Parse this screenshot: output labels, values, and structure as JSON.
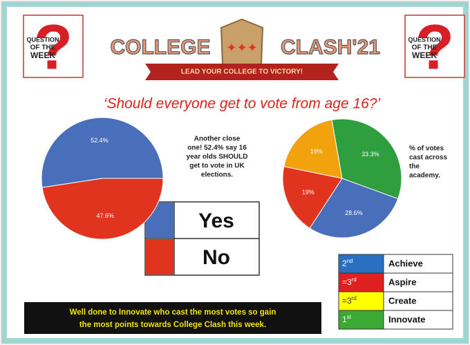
{
  "logo": [
    "QUESTION",
    "OF THE",
    "WEEK"
  ],
  "header": {
    "left": "COLLEGE",
    "right": "CLASH'21",
    "banner": "LEAD YOUR COLLEGE TO VICTORY!"
  },
  "question": "‘Should everyone get to vote from age 16?’",
  "note_left": [
    "Another close",
    "one! 52.4% say 16",
    "year olds SHOULD",
    "get to vote in UK",
    "elections."
  ],
  "note_right": [
    "% of votes",
    "cast across",
    "the",
    "academy."
  ],
  "ranks": [
    {
      "num": "2",
      "suffix": "nd"
    },
    {
      "num": "=3",
      "suffix": "rd"
    },
    {
      "num": "=3",
      "suffix": "rd"
    },
    {
      "num": "1",
      "suffix": "st"
    }
  ],
  "footer": [
    "Well done to Innovate who cast the most votes so gain",
    "the most points towards College Clash this week."
  ],
  "chart_data": [
    {
      "type": "pie",
      "categories": [
        "Yes",
        "No"
      ],
      "values": [
        52.4,
        47.6
      ],
      "value_labels": [
        "52.4%",
        "47.6%"
      ],
      "colors": [
        "#4a6fba",
        "#e0341f"
      ]
    },
    {
      "type": "pie",
      "categories": [
        "Achieve",
        "Aspire",
        "Create",
        "Innovate"
      ],
      "values": [
        28.6,
        19,
        19,
        33.3
      ],
      "value_labels": [
        "28.6%",
        "19%",
        "19%",
        "33.3%"
      ],
      "colors": [
        "#4a6fba",
        "#e0341f",
        "#f2a20d",
        "#2e9e3e"
      ]
    }
  ]
}
